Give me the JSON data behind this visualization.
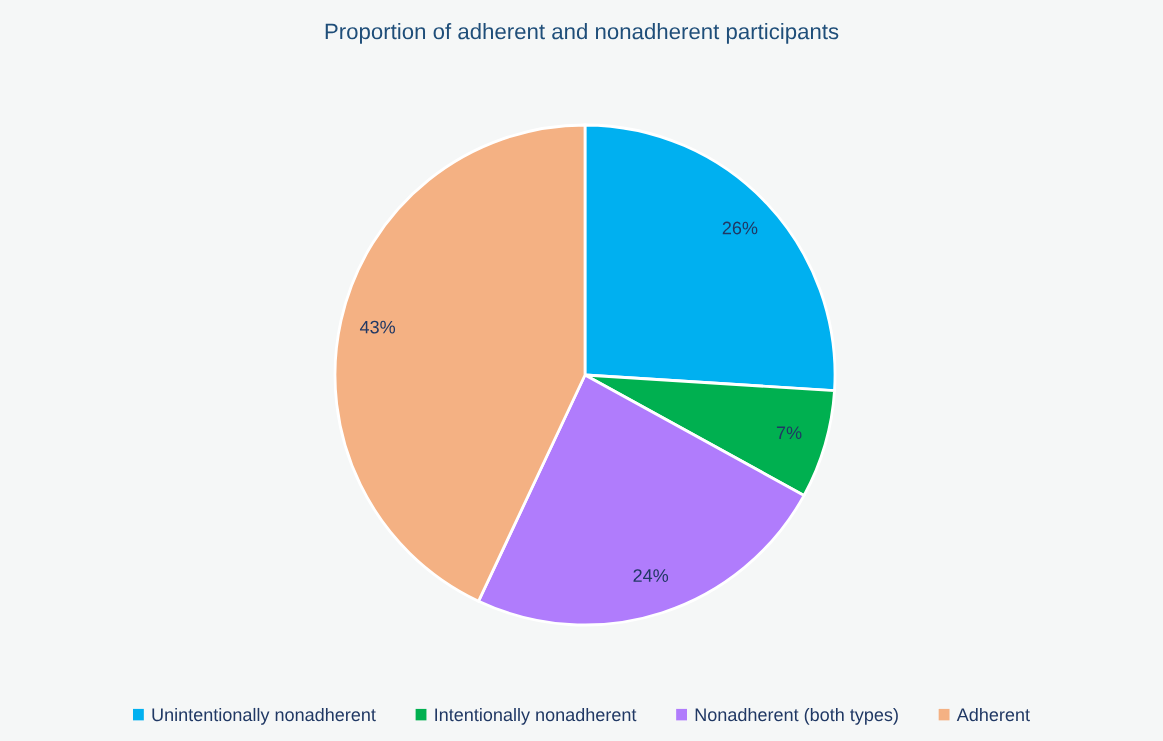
{
  "chart_data": {
    "type": "pie",
    "title": "Proportion of adherent and nonadherent participants",
    "categories": [
      "Unintentionally nonadherent",
      "Intentionally nonadherent",
      "Nonadherent (both types)",
      "Adherent"
    ],
    "values": [
      26,
      7,
      24,
      43
    ],
    "colors": [
      "#00b0f0",
      "#00b050",
      "#b07cfc",
      "#f4b183"
    ],
    "value_labels": [
      "26%",
      "7%",
      "24%",
      "43%"
    ],
    "legend": "bottom"
  }
}
